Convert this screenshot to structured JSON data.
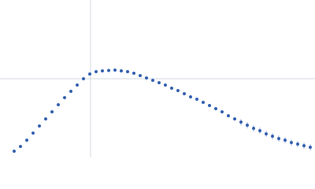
{
  "chart_data": {
    "type": "scatter",
    "color": "#3461b0",
    "error_color": "#9fb6df",
    "xlim": [
      0,
      4
    ],
    "ylim": [
      0,
      2
    ],
    "grid_x": [
      1.15
    ],
    "grid_y": [
      1
    ],
    "x": [
      0.18,
      0.26,
      0.34,
      0.42,
      0.5,
      0.58,
      0.66,
      0.74,
      0.82,
      0.9,
      0.98,
      1.06,
      1.14,
      1.22,
      1.3,
      1.38,
      1.46,
      1.54,
      1.62,
      1.7,
      1.78,
      1.86,
      1.94,
      2.02,
      2.1,
      2.18,
      2.26,
      2.34,
      2.42,
      2.5,
      2.58,
      2.66,
      2.74,
      2.82,
      2.9,
      2.98,
      3.06,
      3.14,
      3.22,
      3.3,
      3.38,
      3.46,
      3.54,
      3.62,
      3.7,
      3.78,
      3.86,
      3.94
    ],
    "values": [
      0.08,
      0.14,
      0.22,
      0.31,
      0.4,
      0.49,
      0.58,
      0.67,
      0.76,
      0.84,
      0.92,
      1.0,
      1.06,
      1.09,
      1.1,
      1.105,
      1.11,
      1.1,
      1.09,
      1.07,
      1.04,
      1.01,
      0.98,
      0.95,
      0.92,
      0.88,
      0.85,
      0.81,
      0.77,
      0.74,
      0.7,
      0.66,
      0.62,
      0.58,
      0.53,
      0.49,
      0.45,
      0.41,
      0.37,
      0.34,
      0.3,
      0.27,
      0.24,
      0.22,
      0.19,
      0.17,
      0.15,
      0.13
    ],
    "errors": [
      0.005,
      0.005,
      0.005,
      0.005,
      0.005,
      0.005,
      0.005,
      0.005,
      0.005,
      0.005,
      0.005,
      0.005,
      0.01,
      0.01,
      0.01,
      0.01,
      0.01,
      0.01,
      0.01,
      0.01,
      0.01,
      0.01,
      0.01,
      0.01,
      0.02,
      0.02,
      0.02,
      0.02,
      0.02,
      0.02,
      0.02,
      0.02,
      0.02,
      0.02,
      0.02,
      0.02,
      0.04,
      0.04,
      0.04,
      0.04,
      0.04,
      0.04,
      0.04,
      0.04,
      0.04,
      0.04,
      0.04,
      0.04
    ]
  }
}
